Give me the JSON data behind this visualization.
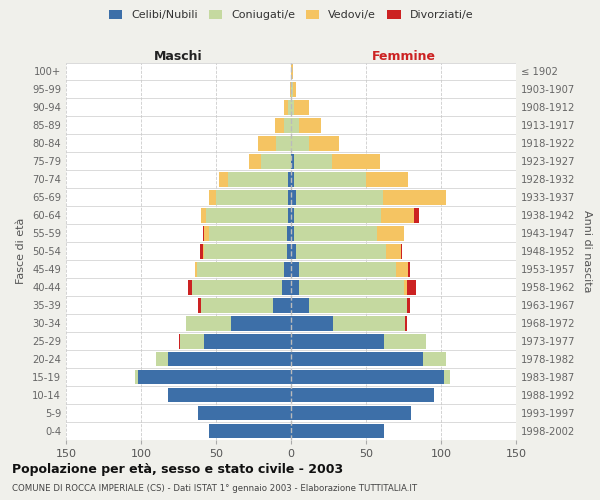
{
  "age_groups": [
    "0-4",
    "5-9",
    "10-14",
    "15-19",
    "20-24",
    "25-29",
    "30-34",
    "35-39",
    "40-44",
    "45-49",
    "50-54",
    "55-59",
    "60-64",
    "65-69",
    "70-74",
    "75-79",
    "80-84",
    "85-89",
    "90-94",
    "95-99",
    "100+"
  ],
  "birth_years": [
    "1998-2002",
    "1993-1997",
    "1988-1992",
    "1983-1987",
    "1978-1982",
    "1973-1977",
    "1968-1972",
    "1963-1967",
    "1958-1962",
    "1953-1957",
    "1948-1952",
    "1943-1947",
    "1938-1942",
    "1933-1937",
    "1928-1932",
    "1923-1927",
    "1918-1922",
    "1913-1917",
    "1908-1912",
    "1903-1907",
    "≤ 1902"
  ],
  "colors": {
    "celibi": "#3d6fa8",
    "coniugati": "#c5d9a0",
    "vedovi": "#f5c462",
    "divorziati": "#cc2222"
  },
  "males": {
    "celibi": [
      55,
      62,
      82,
      102,
      82,
      58,
      40,
      12,
      6,
      5,
      3,
      3,
      2,
      2,
      2,
      0,
      0,
      0,
      0,
      0,
      0
    ],
    "coniugati": [
      0,
      0,
      0,
      2,
      8,
      16,
      30,
      48,
      60,
      58,
      55,
      52,
      55,
      48,
      40,
      20,
      10,
      5,
      2,
      0,
      0
    ],
    "vedovi": [
      0,
      0,
      0,
      0,
      0,
      0,
      0,
      0,
      0,
      1,
      1,
      3,
      3,
      5,
      6,
      8,
      12,
      6,
      3,
      1,
      0
    ],
    "divorziati": [
      0,
      0,
      0,
      0,
      0,
      1,
      0,
      2,
      3,
      0,
      2,
      1,
      0,
      0,
      0,
      0,
      0,
      0,
      0,
      0,
      0
    ]
  },
  "females": {
    "celibi": [
      62,
      80,
      95,
      102,
      88,
      62,
      28,
      12,
      5,
      5,
      3,
      2,
      2,
      3,
      2,
      2,
      0,
      0,
      0,
      0,
      0
    ],
    "coniugati": [
      0,
      0,
      0,
      4,
      15,
      28,
      48,
      65,
      70,
      65,
      60,
      55,
      58,
      58,
      48,
      25,
      12,
      5,
      2,
      1,
      0
    ],
    "vedovi": [
      0,
      0,
      0,
      0,
      0,
      0,
      0,
      0,
      2,
      8,
      10,
      18,
      22,
      42,
      28,
      32,
      20,
      15,
      10,
      2,
      1
    ],
    "divorziati": [
      0,
      0,
      0,
      0,
      0,
      0,
      1,
      2,
      6,
      1,
      1,
      0,
      3,
      0,
      0,
      0,
      0,
      0,
      0,
      0,
      0
    ]
  },
  "title": "Popolazione per età, sesso e stato civile - 2003",
  "subtitle": "COMUNE DI ROCCA IMPERIALE (CS) - Dati ISTAT 1° gennaio 2003 - Elaborazione TUTTITALIA.IT",
  "xlabel_left": "Maschi",
  "xlabel_right": "Femmine",
  "ylabel_left": "Fasce di età",
  "ylabel_right": "Anni di nascita",
  "xlim": 150,
  "background": "#f0f0eb",
  "plot_bg": "#ffffff"
}
